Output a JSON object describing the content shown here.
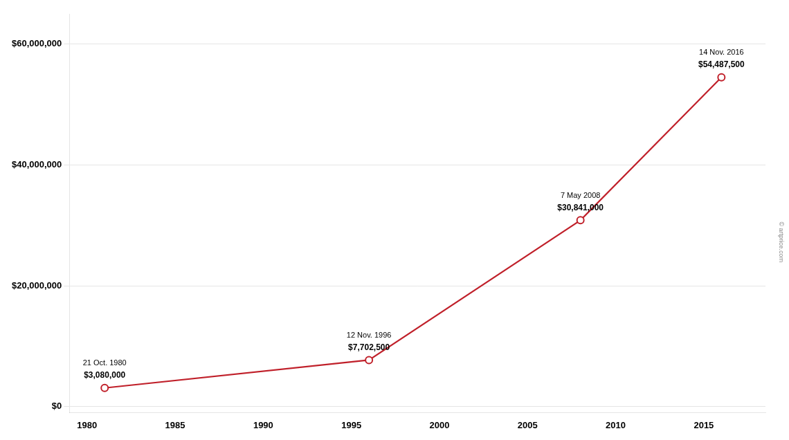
{
  "chart_data": {
    "type": "line",
    "x": [
      1981,
      1996,
      2008,
      2016
    ],
    "values": [
      3080000,
      7702500,
      30841000,
      54487500
    ],
    "data_labels": true,
    "value_labels": [
      "$3,080,000",
      "$7,702,500",
      "$30,841,000",
      "$54,487,500"
    ],
    "annotations": [
      {
        "x": 1981,
        "y": 3080000,
        "text": "21 Oct. 1980"
      },
      {
        "x": 1996,
        "y": 7702500,
        "text": "12 Nov. 1996"
      },
      {
        "x": 2008,
        "y": 30841000,
        "text": "7 May 2008"
      },
      {
        "x": 2016,
        "y": 54487500,
        "text": "14 Nov. 2016"
      }
    ],
    "watermark": "© artprice.com",
    "color": "#c0202a",
    "marker": "circle",
    "xlim": [
      1979,
      2018.5
    ],
    "xticks": [
      1980,
      1985,
      1990,
      1995,
      2000,
      2005,
      2010,
      2015
    ],
    "ylim": [
      -1000000,
      65000000
    ],
    "yticks": [
      {
        "value": 0,
        "label": "$0"
      },
      {
        "value": 20000000,
        "label": "$20,000,000"
      },
      {
        "value": 40000000,
        "label": "$40,000,000"
      },
      {
        "value": 60000000,
        "label": "$60,000,000"
      }
    ],
    "grid": "y"
  }
}
